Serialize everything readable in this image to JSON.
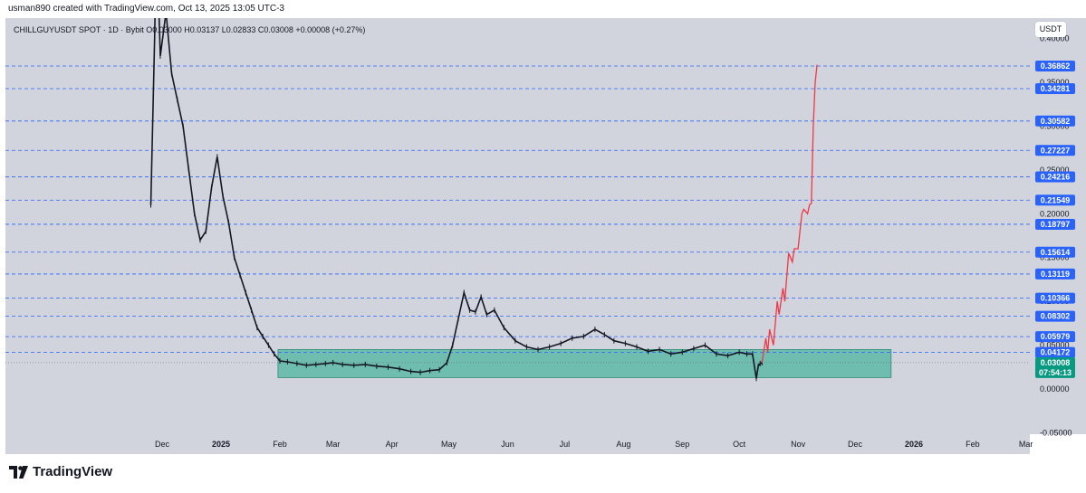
{
  "header": {
    "attribution": "usman890 created with TradingView.com, Oct 13, 2025 13:05 UTC-3"
  },
  "symbol": {
    "line": "CHILLGUYUSDT SPOT · 1D · Bybit",
    "ohlc": "O0.03000 H0.03137 L0.02833 C0.03008 +0.00008 (+0.27%)"
  },
  "currency": "USDT",
  "footer": {
    "brand": "TradingView"
  },
  "colors": {
    "background": "#d1d4dc",
    "level_line": "#2962ff",
    "level_label": "#2962ff",
    "zone_fill": "#4db6a0",
    "projection": "#f23645",
    "price_label": "#089981",
    "candles": "#131722"
  },
  "chart_data": {
    "type": "line",
    "title": "CHILLGUYUSDT SPOT · 1D · Bybit",
    "xlabel": "",
    "ylabel": "",
    "ylim": [
      -0.05,
      0.42
    ],
    "grid": false,
    "price_ticks": [
      "0.40000",
      "0.35000",
      "0.30000",
      "0.25000",
      "0.20000",
      "0.15000",
      "0.10000",
      "0.05000",
      "0.00000",
      "-0.05000"
    ],
    "time_ticks": [
      "Dec",
      "2025",
      "Feb",
      "Mar",
      "Apr",
      "May",
      "Jun",
      "Jul",
      "Aug",
      "Sep",
      "Oct",
      "Nov",
      "Dec",
      "2026",
      "Feb",
      "Mar"
    ],
    "time_tick_values": [
      "2024-12-01",
      "2025-01-01",
      "2025-02-01",
      "2025-03-01",
      "2025-04-01",
      "2025-05-01",
      "2025-06-01",
      "2025-07-01",
      "2025-08-01",
      "2025-09-01",
      "2025-10-01",
      "2025-11-01",
      "2025-12-01",
      "2026-01-01",
      "2026-02-01",
      "2026-03-01"
    ],
    "levels": [
      "0.36862",
      "0.34281",
      "0.30582",
      "0.27227",
      "0.24216",
      "0.21549",
      "0.18797",
      "0.15614",
      "0.13119",
      "0.10366",
      "0.08302",
      "0.05979",
      "0.04172"
    ],
    "current_price": {
      "value": "0.03008",
      "countdown": "07:54:13"
    },
    "zone": {
      "x_start": "2025-01-31",
      "x_end": "2025-12-20",
      "y_low": 0.013,
      "y_high": 0.045
    },
    "series": [
      {
        "x": [
          "2024-11-25",
          "2024-11-27",
          "2024-11-28",
          "2024-11-30",
          "2024-12-03",
          "2024-12-06",
          "2024-12-09",
          "2024-12-12",
          "2024-12-15",
          "2024-12-18",
          "2024-12-21",
          "2024-12-24",
          "2024-12-27",
          "2024-12-30",
          "2025-01-02",
          "2025-01-05",
          "2025-01-08",
          "2025-01-11",
          "2025-01-14",
          "2025-01-17",
          "2025-01-20",
          "2025-01-23",
          "2025-01-26",
          "2025-01-29",
          "2025-02-01",
          "2025-02-05",
          "2025-02-10",
          "2025-02-15",
          "2025-02-20",
          "2025-02-25",
          "2025-03-01",
          "2025-03-06",
          "2025-03-12",
          "2025-03-18",
          "2025-03-24",
          "2025-03-30",
          "2025-04-05",
          "2025-04-11",
          "2025-04-16",
          "2025-04-21",
          "2025-04-26",
          "2025-04-30",
          "2025-05-03",
          "2025-05-06",
          "2025-05-09",
          "2025-05-12",
          "2025-05-15",
          "2025-05-18",
          "2025-05-21",
          "2025-05-25",
          "2025-05-30",
          "2025-06-05",
          "2025-06-11",
          "2025-06-17",
          "2025-06-23",
          "2025-06-29",
          "2025-07-05",
          "2025-07-11",
          "2025-07-17",
          "2025-07-22",
          "2025-07-27",
          "2025-08-02",
          "2025-08-08",
          "2025-08-14",
          "2025-08-20",
          "2025-08-26",
          "2025-09-01",
          "2025-09-07",
          "2025-09-13",
          "2025-09-19",
          "2025-09-25",
          "2025-10-01",
          "2025-10-05",
          "2025-10-08",
          "2025-10-10",
          "2025-10-11",
          "2025-10-12",
          "2025-10-13"
        ],
        "y": [
          0.21,
          0.4,
          0.52,
          0.38,
          0.43,
          0.36,
          0.33,
          0.3,
          0.25,
          0.2,
          0.17,
          0.18,
          0.23,
          0.265,
          0.22,
          0.19,
          0.15,
          0.13,
          0.11,
          0.09,
          0.07,
          0.06,
          0.05,
          0.04,
          0.032,
          0.031,
          0.029,
          0.027,
          0.028,
          0.029,
          0.03,
          0.028,
          0.027,
          0.028,
          0.026,
          0.025,
          0.023,
          0.02,
          0.019,
          0.021,
          0.022,
          0.03,
          0.05,
          0.08,
          0.11,
          0.09,
          0.088,
          0.105,
          0.085,
          0.09,
          0.07,
          0.055,
          0.048,
          0.045,
          0.048,
          0.052,
          0.058,
          0.06,
          0.068,
          0.062,
          0.055,
          0.052,
          0.048,
          0.043,
          0.045,
          0.04,
          0.042,
          0.046,
          0.05,
          0.04,
          0.038,
          0.042,
          0.04,
          0.04,
          0.012,
          0.026,
          0.029,
          0.03
        ]
      },
      {
        "x": [
          "2025-10-13",
          "2025-10-15",
          "2025-10-16",
          "2025-10-17",
          "2025-10-19",
          "2025-10-21",
          "2025-10-22",
          "2025-10-24",
          "2025-10-25",
          "2025-10-27",
          "2025-10-29",
          "2025-10-30",
          "2025-11-01",
          "2025-11-03",
          "2025-11-04",
          "2025-11-06",
          "2025-11-07",
          "2025-11-08",
          "2025-11-09",
          "2025-11-10",
          "2025-11-11"
        ],
        "y": [
          0.03,
          0.058,
          0.042,
          0.068,
          0.05,
          0.1,
          0.085,
          0.115,
          0.1,
          0.155,
          0.145,
          0.16,
          0.16,
          0.2,
          0.205,
          0.2,
          0.21,
          0.212,
          0.3,
          0.35,
          0.37
        ]
      }
    ]
  }
}
